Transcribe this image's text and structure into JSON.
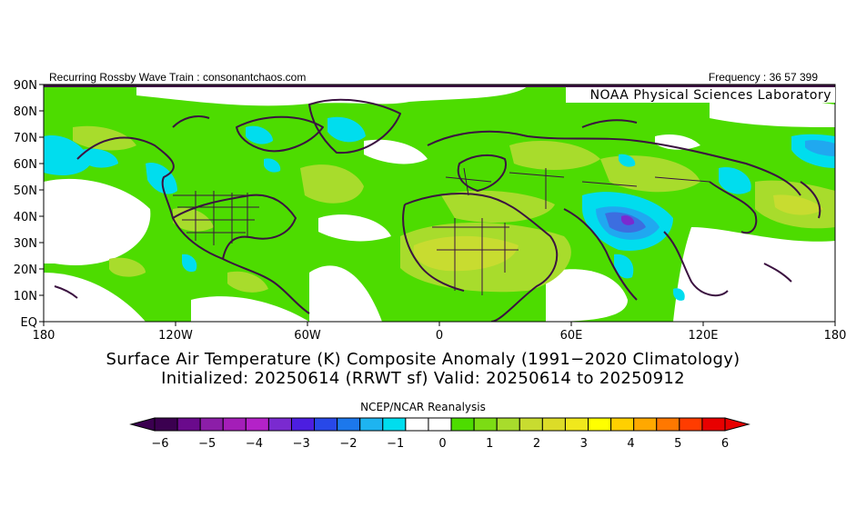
{
  "header": {
    "left_text": "Recurring Rossby Wave Train : consonantchaos.com",
    "right_text": "Frequency : 36 57 399",
    "lab_label": "NOAA Physical Sciences Laboratory"
  },
  "map": {
    "lat_labels": [
      "90N",
      "80N",
      "70N",
      "60N",
      "50N",
      "40N",
      "30N",
      "20N",
      "10N",
      "EQ"
    ],
    "lon_labels": [
      "180",
      "120W",
      "60W",
      "0",
      "60E",
      "120E",
      "180"
    ],
    "colors": {
      "neutral": "#ffffff",
      "pos1": "#4ddc00",
      "pos1_5": "#a8dc2c",
      "pos2": "#c8dc30",
      "neg1": "#00ddee",
      "neg1_5": "#20a8f0",
      "neg2": "#3c6ee0",
      "neg3": "#7a2ad0",
      "coast": "#3b1240"
    }
  },
  "titles": {
    "line1": "Surface Air Temperature (K) Composite Anomaly (1991−2020 Climatology)",
    "line2": "Initialized: 20250614 (RRWT sf) Valid: 20250614 to 20250912"
  },
  "colorbar": {
    "source": "NCEP/NCAR Reanalysis",
    "tick_labels": [
      "−6",
      "−5",
      "−4",
      "−3",
      "−2",
      "−1",
      "0",
      "1",
      "2",
      "3",
      "4",
      "5",
      "6"
    ],
    "colors": [
      "#3b0050",
      "#6a0a8c",
      "#8c1ea8",
      "#a41eb8",
      "#b422c8",
      "#7a2ad0",
      "#4c1ee0",
      "#2848e8",
      "#1c78ec",
      "#1eb4f0",
      "#00ddee",
      "#ffffff",
      "#ffffff",
      "#4ddc00",
      "#7cdc14",
      "#a8dc2c",
      "#c8dc30",
      "#dcdc28",
      "#f0e81c",
      "#ffff00",
      "#ffd000",
      "#ffa800",
      "#ff7800",
      "#ff3c00",
      "#e80000"
    ]
  }
}
